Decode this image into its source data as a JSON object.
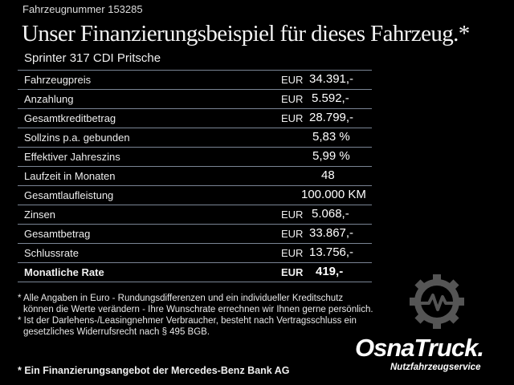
{
  "header": {
    "vehicle_number": "Fahrzeugnummer 153285",
    "title": "Unser Finanzierungsbeispiel für dieses Fahrzeug.*",
    "model": "Sprinter 317 CDI Pritsche"
  },
  "table": {
    "rows": [
      {
        "label": "Fahrzeugpreis",
        "currency": "EUR",
        "value": "34.391,-"
      },
      {
        "label": "Anzahlung",
        "currency": "EUR",
        "value": "5.592,-"
      },
      {
        "label": "Gesamtkreditbetrag",
        "currency": "EUR",
        "value": "28.799,-"
      },
      {
        "label": "Sollzins p.a. gebunden",
        "currency": "",
        "value": "5,83 %"
      },
      {
        "label": "Effektiver Jahreszins",
        "currency": "",
        "value": "5,99 %"
      },
      {
        "label": "Laufzeit in Monaten",
        "currency": "",
        "value": "48"
      },
      {
        "label": "Gesamtlaufleistung",
        "currency": "",
        "value": "100.000 KM"
      },
      {
        "label": "Zinsen",
        "currency": "EUR",
        "value": "5.068,-"
      },
      {
        "label": "Gesamtbetrag",
        "currency": "EUR",
        "value": "33.867,-"
      },
      {
        "label": "Schlussrate",
        "currency": "EUR",
        "value": "13.756,-"
      },
      {
        "label": "Monatliche Rate",
        "currency": "EUR",
        "value": "419,-"
      }
    ]
  },
  "notes": [
    "* Alle Angaben in Euro - Rundungsdifferenzen und ein individueller Kreditschutz",
    "  können die Werte verändern - Ihre Wunschrate errechnen wir Ihnen gerne persönlich.",
    "* Ist der Darlehens-/Leasingnehmer Verbraucher, besteht nach Vertragsschluss ein",
    "  gesetzliches Widerrufsrecht nach § 495 BGB."
  ],
  "bank_note": "* Ein Finanzierungsangebot der Mercedes-Benz Bank AG",
  "logo": {
    "name": "OsnaTruck.",
    "tagline": "Nutzfahrzeugservice",
    "icon": "gear-pulse-icon",
    "gear_color": "#555555"
  }
}
